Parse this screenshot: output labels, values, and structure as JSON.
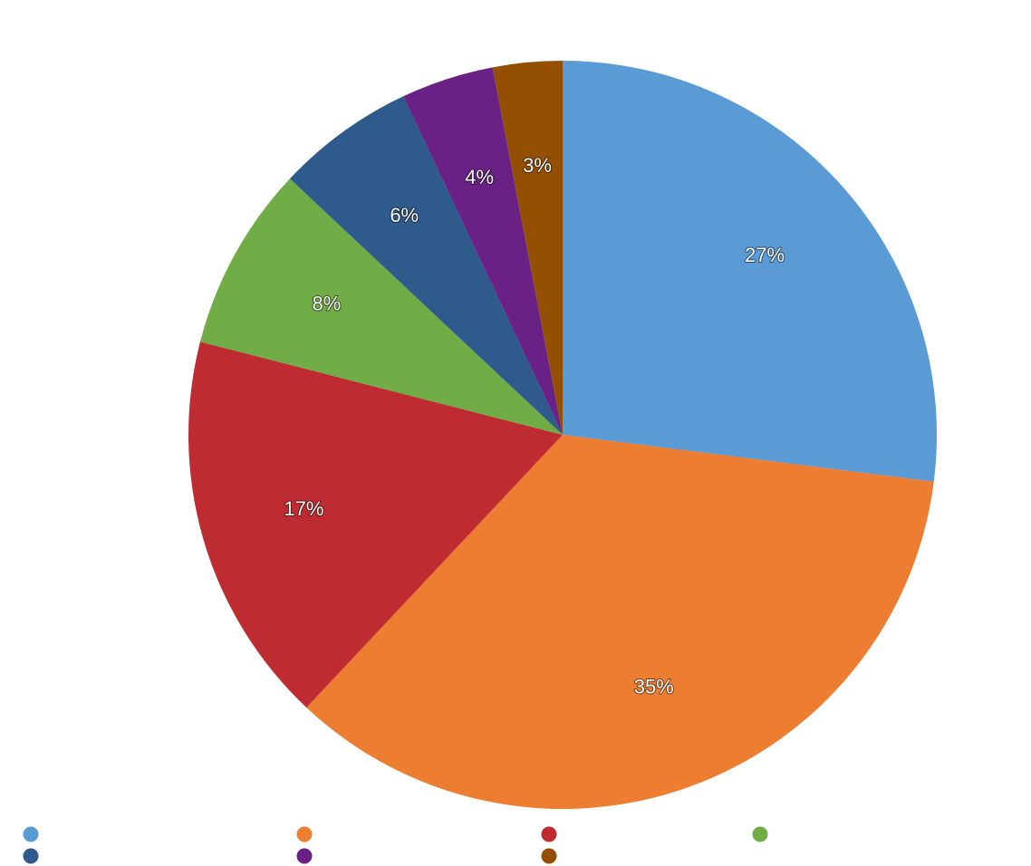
{
  "chart_data": {
    "type": "pie",
    "start_angle_deg": 0,
    "direction": "clockwise",
    "legend_placement": "bottom",
    "slices": [
      {
        "label": "",
        "value": 27,
        "display": "27%",
        "color": "#5B9BD5"
      },
      {
        "label": "",
        "value": 35,
        "display": "35%",
        "color": "#ED7D31"
      },
      {
        "label": "",
        "value": 17,
        "display": "17%",
        "color": "#BE2B31"
      },
      {
        "label": "",
        "value": 8,
        "display": "8%",
        "color": "#70AD47"
      },
      {
        "label": "",
        "value": 6,
        "display": "6%",
        "color": "#2E5A8C"
      },
      {
        "label": "",
        "value": 4,
        "display": "4%",
        "color": "#6A2185"
      },
      {
        "label": "",
        "value": 3,
        "display": "3%",
        "color": "#954F00"
      }
    ]
  }
}
